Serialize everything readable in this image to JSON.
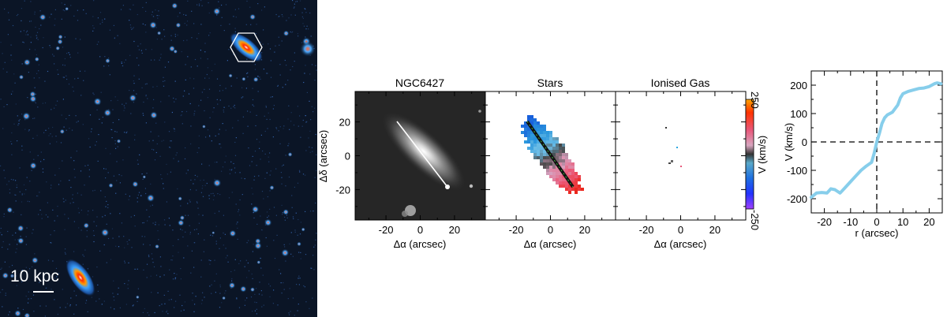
{
  "deep_image": {
    "scale_label": "10 kpc"
  },
  "panels": [
    {
      "title": "NGC6427",
      "xlabel": "Δα  (arcsec)",
      "ylabel": "Δδ  (arcsec)"
    },
    {
      "title": "Stars",
      "xlabel": "Δα  (arcsec)"
    },
    {
      "title": "Ionised Gas",
      "xlabel": "Δα  (arcsec)"
    }
  ],
  "map_ticks": {
    "x": [
      "-20",
      "0",
      "20"
    ],
    "y": [
      "20",
      "0",
      "-20"
    ]
  },
  "colorbar": {
    "label": "V (km/s)",
    "max": "250",
    "min": "-250"
  },
  "chart_data": {
    "type": "line",
    "title": "",
    "xlabel": "r (arcsec)",
    "ylabel": "V (km/s)",
    "xlim": [
      -25,
      25
    ],
    "ylim": [
      -250,
      250
    ],
    "x_ticks": [
      -20,
      -10,
      0,
      10,
      20
    ],
    "y_ticks": [
      -200,
      -100,
      0,
      100,
      200
    ],
    "series": [
      {
        "color": "#87ceeb",
        "x": [
          -25,
          -23,
          -21,
          -19,
          -17.5,
          -16,
          -14,
          -12,
          -10,
          -8,
          -6,
          -4,
          -2,
          -1,
          0,
          1,
          2,
          3,
          4,
          6,
          8,
          9,
          10,
          12,
          14,
          16,
          18,
          20,
          21,
          22,
          23,
          24.5
        ],
        "y": [
          -195,
          -180,
          -178,
          -180,
          -165,
          -168,
          -180,
          -160,
          -140,
          -120,
          -100,
          -85,
          -72,
          -40,
          0,
          30,
          65,
          85,
          95,
          105,
          130,
          155,
          170,
          178,
          183,
          188,
          190,
          195,
          200,
          205,
          208,
          205
        ]
      }
    ],
    "reference_lines": {
      "x": 0,
      "y": 0,
      "style": "dashed"
    }
  }
}
